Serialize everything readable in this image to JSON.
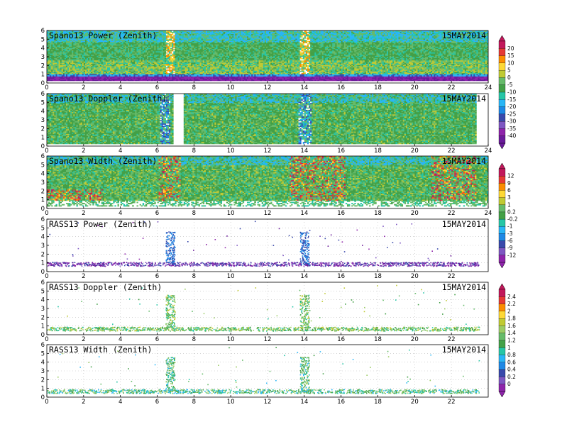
{
  "chart_data": [
    {
      "type": "heatmap",
      "title": "Spano13 Power (Zenith)",
      "date": "15MAY2014",
      "x_ticks": [
        "0",
        "2",
        "4",
        "6",
        "8",
        "10",
        "12",
        "14",
        "16",
        "18",
        "20",
        "22",
        "24"
      ],
      "y_ticks": [
        "0",
        "1",
        "2",
        "3",
        "4",
        "5",
        "6"
      ],
      "xlim": [
        0,
        24
      ],
      "ylim": [
        0,
        6
      ],
      "description_of_values": "dense field mostly 0 to -15 with strong vertical features near 6.5 and 14, purple band below 1",
      "features": [
        {
          "x": 6.7,
          "kind": "vertical"
        },
        {
          "x": 14.0,
          "kind": "vertical"
        }
      ]
    },
    {
      "type": "heatmap",
      "title": "Spano13 Doppler (Zenith)",
      "date": "15MAY2014",
      "x_ticks": [
        "0",
        "2",
        "4",
        "6",
        "8",
        "10",
        "12",
        "14",
        "16",
        "18",
        "20",
        "22",
        "24"
      ],
      "y_ticks": [
        "0",
        "1",
        "2",
        "3",
        "4",
        "5",
        "6"
      ],
      "xlim": [
        0,
        24
      ],
      "ylim": [
        0,
        6
      ],
      "description_of_values": "mostly near 0 (green) with blue downward velocity features near 6.3 and 14, gaps 6.8-7.5 and after 23.3",
      "features": [
        {
          "x": 6.3,
          "kind": "vertical"
        },
        {
          "x": 14.0,
          "kind": "vertical"
        }
      ]
    },
    {
      "type": "heatmap",
      "title": "Spano13 Width (Zenith)",
      "date": "15MAY2014",
      "x_ticks": [
        "0",
        "2",
        "4",
        "6",
        "8",
        "10",
        "12",
        "14",
        "16",
        "18",
        "20",
        "22",
        "24"
      ],
      "y_ticks": [
        "0",
        "1",
        "2",
        "3",
        "4",
        "5",
        "6"
      ],
      "xlim": [
        0,
        24
      ],
      "ylim": [
        0,
        6
      ],
      "description_of_values": "mostly green with red/orange patches near 6.5, 13.5-16 and 21-23",
      "features": [
        {
          "x": 6.5,
          "kind": "patch"
        },
        {
          "x": 14.5,
          "kind": "patch"
        },
        {
          "x": 22.0,
          "kind": "patch"
        }
      ]
    },
    {
      "type": "scatter",
      "title": "RASS13 Power (Zenith)",
      "date": "15MAY2014",
      "x_ticks": [
        "0",
        "2",
        "4",
        "6",
        "8",
        "10",
        "12",
        "14",
        "16",
        "18",
        "20",
        "22"
      ],
      "y_ticks": [
        "0",
        "1",
        "2",
        "3",
        "4",
        "5",
        "6"
      ],
      "xlim": [
        0,
        24
      ],
      "ylim": [
        0,
        6
      ],
      "description_of_values": "purple points along ~0.9 km with columns up to 4-5 km near 6.7 and 14",
      "features": [
        {
          "x": 6.7,
          "kind": "column"
        },
        {
          "x": 14.0,
          "kind": "column"
        }
      ]
    },
    {
      "type": "scatter",
      "title": "RASS13 Doppler (Zenith)",
      "date": "15MAY2014",
      "x_ticks": [
        "0",
        "2",
        "4",
        "6",
        "8",
        "10",
        "12",
        "14",
        "16",
        "18",
        "20",
        "22"
      ],
      "y_ticks": [
        "0",
        "1",
        "2",
        "3",
        "4",
        "5",
        "6"
      ],
      "xlim": [
        0,
        24
      ],
      "ylim": [
        0,
        6
      ],
      "description_of_values": "green points along ~0.7 km with columns near 6.7 and 14",
      "features": [
        {
          "x": 6.7,
          "kind": "column"
        },
        {
          "x": 14.0,
          "kind": "column"
        }
      ]
    },
    {
      "type": "scatter",
      "title": "RASS13 Width (Zenith)",
      "date": "15MAY2014",
      "x_ticks": [
        "0",
        "2",
        "4",
        "6",
        "8",
        "10",
        "12",
        "14",
        "16",
        "18",
        "20",
        "22"
      ],
      "y_ticks": [
        "0",
        "1",
        "2",
        "3",
        "4",
        "5",
        "6"
      ],
      "xlim": [
        0,
        24
      ],
      "ylim": [
        0,
        6
      ],
      "description_of_values": "green/cyan points along ~0.7 km with columns near 6.7 and 14",
      "features": [
        {
          "x": 6.7,
          "kind": "column"
        },
        {
          "x": 14.0,
          "kind": "column"
        }
      ]
    }
  ],
  "colorbars": [
    {
      "labels": [
        "20",
        "15",
        "10",
        "5",
        "0",
        "-5",
        "-10",
        "-15",
        "-20",
        "-25",
        "-30",
        "-35",
        "-40"
      ],
      "colors": [
        "#c2185b",
        "#e53935",
        "#fb8c00",
        "#fdd835",
        "#c0ca33",
        "#66bb6a",
        "#43a047",
        "#26c6a6",
        "#29b6f6",
        "#1e88e5",
        "#3949ab",
        "#7e57c2",
        "#8e24aa",
        "#6a1b9a"
      ]
    },
    {
      "labels": [
        "12",
        "9",
        "6",
        "3",
        "1",
        "0.2",
        "-0.2",
        "-1",
        "-3",
        "-6",
        "-9",
        "-12"
      ],
      "colors": [
        "#c2185b",
        "#e53935",
        "#fb8c00",
        "#fdd835",
        "#c0ca33",
        "#66bb6a",
        "#43a047",
        "#26c6a6",
        "#29b6f6",
        "#1e88e5",
        "#3949ab",
        "#7e57c2",
        "#8e24aa"
      ]
    },
    {
      "labels": [
        "2.4",
        "2.2",
        "2",
        "1.8",
        "1.6",
        "1.4",
        "1.2",
        "1",
        "0.8",
        "0.6",
        "0.4",
        "0.2",
        "0"
      ],
      "colors": [
        "#c2185b",
        "#e53935",
        "#fb8c00",
        "#fdd835",
        "#c0ca33",
        "#9ccc65",
        "#66bb6a",
        "#43a047",
        "#26c6a6",
        "#29b6f6",
        "#1e88e5",
        "#3949ab",
        "#7e57c2",
        "#8e24aa"
      ]
    }
  ]
}
